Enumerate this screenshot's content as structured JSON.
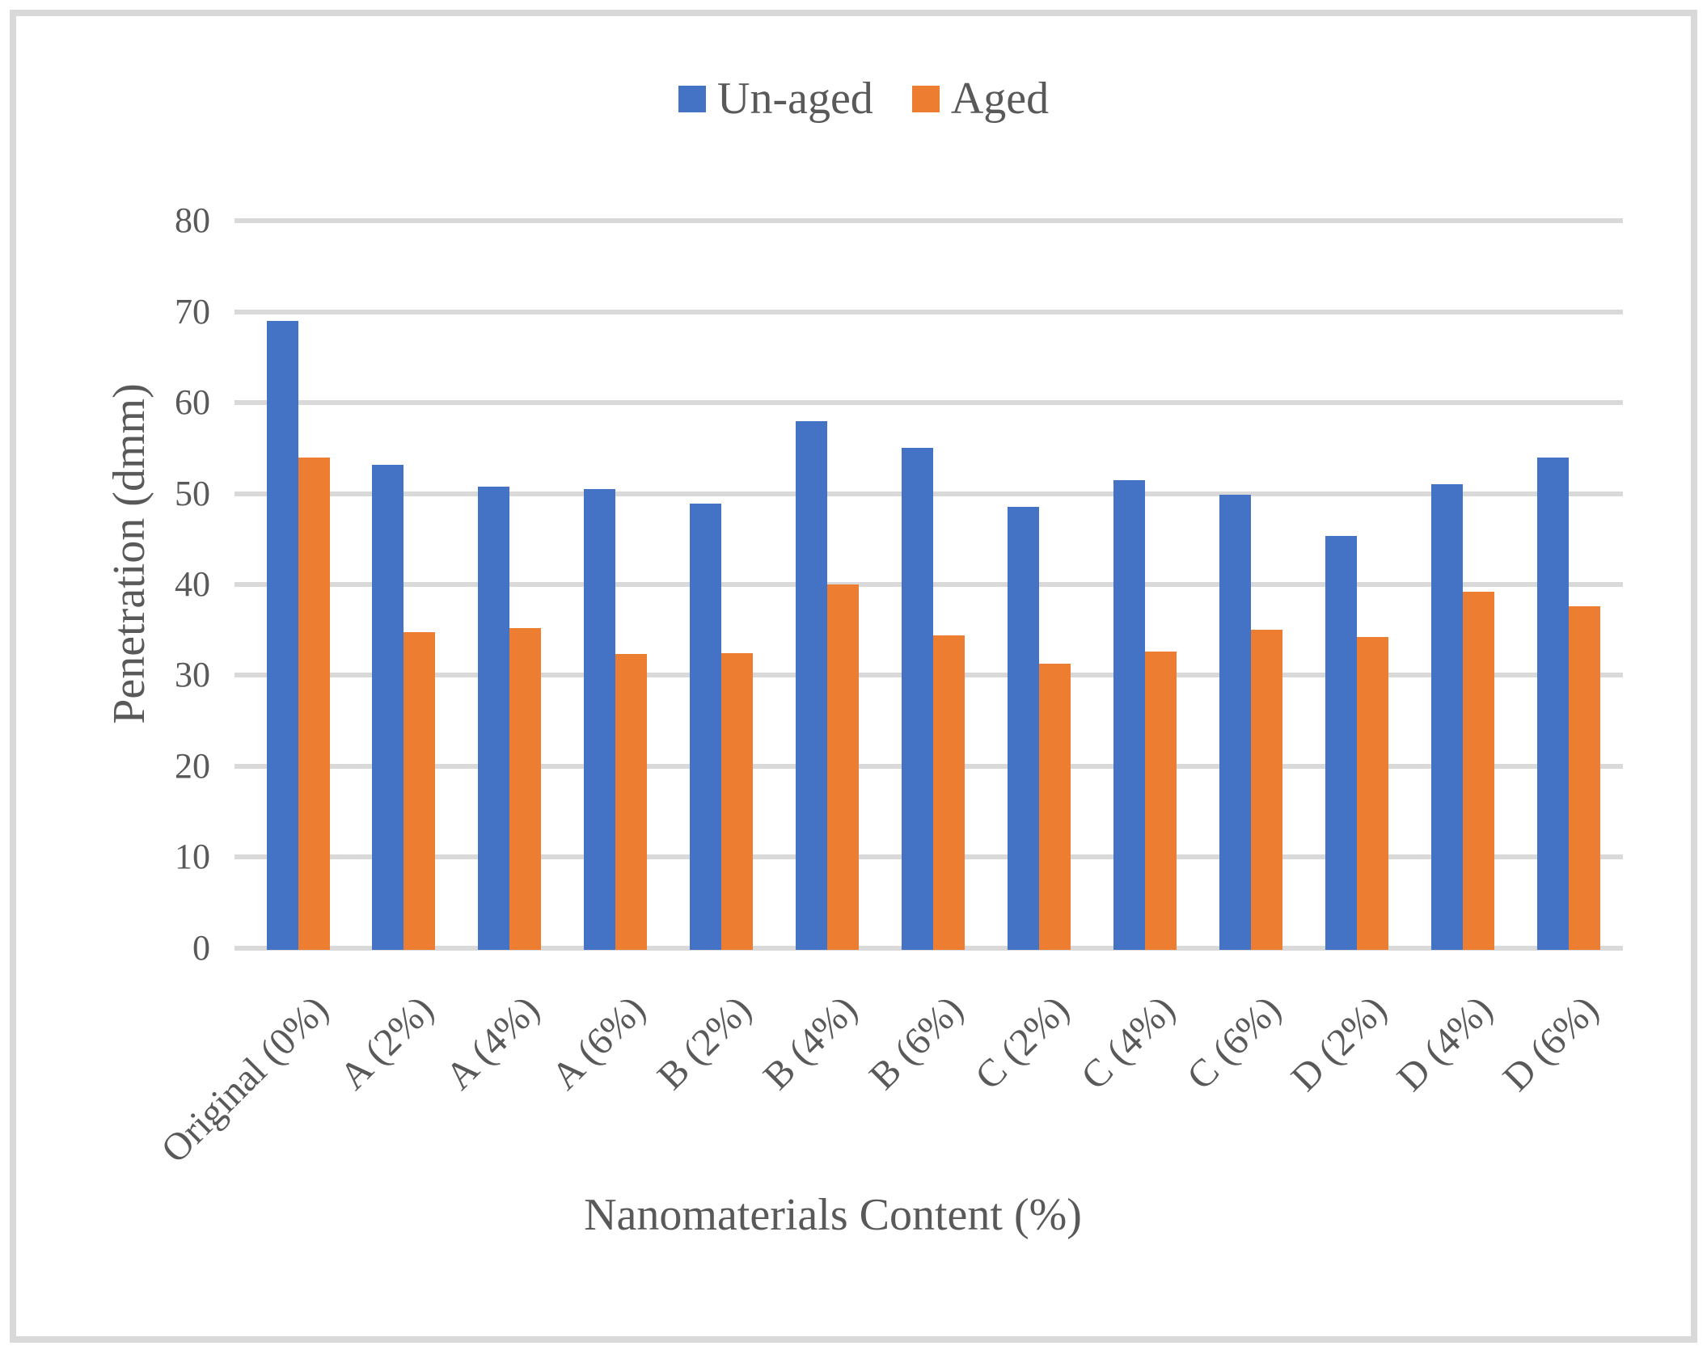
{
  "chart_data": {
    "type": "bar",
    "title": "",
    "xlabel": "Nanomaterials Content (%)",
    "ylabel": "Penetration (dmm)",
    "categories": [
      "Original (0%)",
      "A (2%)",
      "A (4%)",
      "A (6%)",
      "B (2%)",
      "B (4%)",
      "B (6%)",
      "C (2%)",
      "C (4%)",
      "C (6%)",
      "D (2%)",
      "D (4%)",
      "D (6%)"
    ],
    "series": [
      {
        "name": "Un-aged",
        "color": "#4472C4",
        "values": [
          69,
          53.2,
          50.8,
          50.5,
          48.9,
          58,
          55,
          48.5,
          51.5,
          49.9,
          45.3,
          51,
          54
        ]
      },
      {
        "name": "Aged",
        "color": "#ED7D31",
        "values": [
          54,
          34.7,
          35.2,
          32.3,
          32.4,
          40,
          34.4,
          31.3,
          32.6,
          35,
          34.2,
          39.2,
          37.6
        ]
      }
    ],
    "ylim": [
      0,
      80
    ],
    "yticks": [
      0,
      10,
      20,
      30,
      40,
      50,
      60,
      70,
      80
    ],
    "grid": true,
    "legend_position": "top-center",
    "gridline_color": "#D9D9D9",
    "frame_color": "#D9D9D9",
    "text_color": "#595959"
  }
}
